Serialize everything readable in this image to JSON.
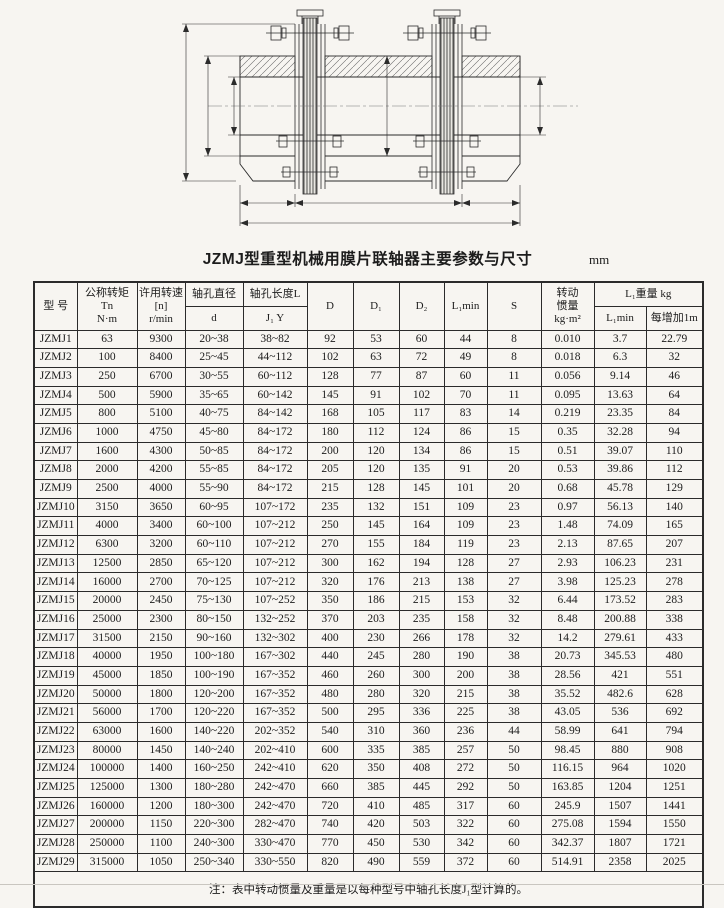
{
  "page": {
    "title": "JZMJ型重型机械用膜片联轴器主要参数与尺寸",
    "unit": "mm",
    "note": "注：表中转动惯量及重量是以每种型号中轴孔长度J₁型计算的。"
  },
  "colors": {
    "background": "#f7f5f1",
    "line": "#2b2b2b",
    "text": "#1c1c1c"
  },
  "drawing": {
    "labels": {
      "D": "D",
      "D1": "D₁",
      "d_left": "d",
      "D2": "D₂",
      "d_right": "d",
      "L_left": "L",
      "L1": "L1",
      "L_right": "L",
      "L0": "L0"
    }
  },
  "table": {
    "headers": {
      "h_model": "型 号",
      "h_torque_1": "公称转矩",
      "h_torque_2": "Tn",
      "h_torque_3": "N·m",
      "h_speed_1": "许用转速",
      "h_speed_2": "[n]",
      "h_speed_3": "r/min",
      "h_bore_dia": "轴孔直径",
      "h_bore_dia_sub": "d",
      "h_bore_len": "轴孔长度L",
      "h_bore_len_sub": "J₁ Y",
      "h_D": "D",
      "h_D1": "D₁",
      "h_D2": "D₂",
      "h_L1min": "L₁min",
      "h_S": "S",
      "h_inertia_1": "转动",
      "h_inertia_2": "惯量",
      "h_inertia_3": "kg·m²",
      "h_weight": "L₁重量 kg",
      "h_weight_min": "L₁min",
      "h_weight_per": "每增加1m"
    },
    "rows": [
      [
        "JZMJ1",
        "63",
        "9300",
        "20~38",
        "38~82",
        "92",
        "53",
        "60",
        "44",
        "8",
        "0.010",
        "3.7",
        "22.79"
      ],
      [
        "JZMJ2",
        "100",
        "8400",
        "25~45",
        "44~112",
        "102",
        "63",
        "72",
        "49",
        "8",
        "0.018",
        "6.3",
        "32"
      ],
      [
        "JZMJ3",
        "250",
        "6700",
        "30~55",
        "60~112",
        "128",
        "77",
        "87",
        "60",
        "11",
        "0.056",
        "9.14",
        "46"
      ],
      [
        "JZMJ4",
        "500",
        "5900",
        "35~65",
        "60~142",
        "145",
        "91",
        "102",
        "70",
        "11",
        "0.095",
        "13.63",
        "64"
      ],
      [
        "JZMJ5",
        "800",
        "5100",
        "40~75",
        "84~142",
        "168",
        "105",
        "117",
        "83",
        "14",
        "0.219",
        "23.35",
        "84"
      ],
      [
        "JZMJ6",
        "1000",
        "4750",
        "45~80",
        "84~172",
        "180",
        "112",
        "124",
        "86",
        "15",
        "0.35",
        "32.28",
        "94"
      ],
      [
        "JZMJ7",
        "1600",
        "4300",
        "50~85",
        "84~172",
        "200",
        "120",
        "134",
        "86",
        "15",
        "0.51",
        "39.07",
        "110"
      ],
      [
        "JZMJ8",
        "2000",
        "4200",
        "55~85",
        "84~172",
        "205",
        "120",
        "135",
        "91",
        "20",
        "0.53",
        "39.86",
        "112"
      ],
      [
        "JZMJ9",
        "2500",
        "4000",
        "55~90",
        "84~172",
        "215",
        "128",
        "145",
        "101",
        "20",
        "0.68",
        "45.78",
        "129"
      ],
      [
        "JZMJ10",
        "3150",
        "3650",
        "60~95",
        "107~172",
        "235",
        "132",
        "151",
        "109",
        "23",
        "0.97",
        "56.13",
        "140"
      ],
      [
        "JZMJ11",
        "4000",
        "3400",
        "60~100",
        "107~212",
        "250",
        "145",
        "164",
        "109",
        "23",
        "1.48",
        "74.09",
        "165"
      ],
      [
        "JZMJ12",
        "6300",
        "3200",
        "60~110",
        "107~212",
        "270",
        "155",
        "184",
        "119",
        "23",
        "2.13",
        "87.65",
        "207"
      ],
      [
        "JZMJ13",
        "12500",
        "2850",
        "65~120",
        "107~212",
        "300",
        "162",
        "194",
        "128",
        "27",
        "2.93",
        "106.23",
        "231"
      ],
      [
        "JZMJ14",
        "16000",
        "2700",
        "70~125",
        "107~212",
        "320",
        "176",
        "213",
        "138",
        "27",
        "3.98",
        "125.23",
        "278"
      ],
      [
        "JZMJ15",
        "20000",
        "2450",
        "75~130",
        "107~252",
        "350",
        "186",
        "215",
        "153",
        "32",
        "6.44",
        "173.52",
        "283"
      ],
      [
        "JZMJ16",
        "25000",
        "2300",
        "80~150",
        "132~252",
        "370",
        "203",
        "235",
        "158",
        "32",
        "8.48",
        "200.88",
        "338"
      ],
      [
        "JZMJ17",
        "31500",
        "2150",
        "90~160",
        "132~302",
        "400",
        "230",
        "266",
        "178",
        "32",
        "14.2",
        "279.61",
        "433"
      ],
      [
        "JZMJ18",
        "40000",
        "1950",
        "100~180",
        "167~302",
        "440",
        "245",
        "280",
        "190",
        "38",
        "20.73",
        "345.53",
        "480"
      ],
      [
        "JZMJ19",
        "45000",
        "1850",
        "100~190",
        "167~352",
        "460",
        "260",
        "300",
        "200",
        "38",
        "28.56",
        "421",
        "551"
      ],
      [
        "JZMJ20",
        "50000",
        "1800",
        "120~200",
        "167~352",
        "480",
        "280",
        "320",
        "215",
        "38",
        "35.52",
        "482.6",
        "628"
      ],
      [
        "JZMJ21",
        "56000",
        "1700",
        "120~220",
        "167~352",
        "500",
        "295",
        "336",
        "225",
        "38",
        "43.05",
        "536",
        "692"
      ],
      [
        "JZMJ22",
        "63000",
        "1600",
        "140~220",
        "202~352",
        "540",
        "310",
        "360",
        "236",
        "44",
        "58.99",
        "641",
        "794"
      ],
      [
        "JZMJ23",
        "80000",
        "1450",
        "140~240",
        "202~410",
        "600",
        "335",
        "385",
        "257",
        "50",
        "98.45",
        "880",
        "908"
      ],
      [
        "JZMJ24",
        "100000",
        "1400",
        "160~250",
        "242~410",
        "620",
        "350",
        "408",
        "272",
        "50",
        "116.15",
        "964",
        "1020"
      ],
      [
        "JZMJ25",
        "125000",
        "1300",
        "180~280",
        "242~470",
        "660",
        "385",
        "445",
        "292",
        "50",
        "163.85",
        "1204",
        "1251"
      ],
      [
        "JZMJ26",
        "160000",
        "1200",
        "180~300",
        "242~470",
        "720",
        "410",
        "485",
        "317",
        "60",
        "245.9",
        "1507",
        "1441"
      ],
      [
        "JZMJ27",
        "200000",
        "1150",
        "220~300",
        "282~470",
        "740",
        "420",
        "503",
        "322",
        "60",
        "275.08",
        "1594",
        "1550"
      ],
      [
        "JZMJ28",
        "250000",
        "1100",
        "240~300",
        "330~470",
        "770",
        "450",
        "530",
        "342",
        "60",
        "342.37",
        "1807",
        "1721"
      ],
      [
        "JZMJ29",
        "315000",
        "1050",
        "250~340",
        "330~550",
        "820",
        "490",
        "559",
        "372",
        "60",
        "514.91",
        "2358",
        "2025"
      ]
    ]
  }
}
